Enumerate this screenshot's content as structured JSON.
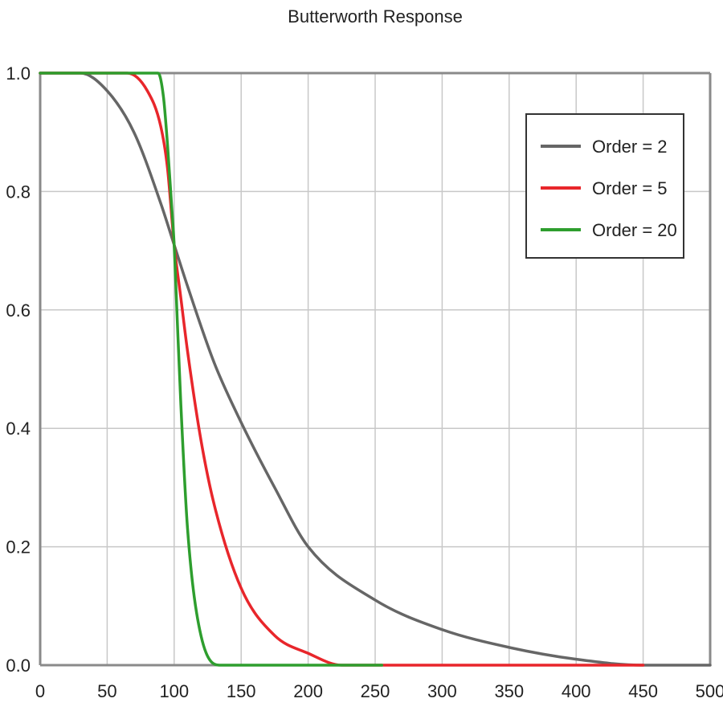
{
  "chart_data": {
    "type": "line",
    "title": "Butterworth Response",
    "xlabel": "",
    "ylabel": "",
    "xlim": [
      0,
      500
    ],
    "ylim": [
      0,
      1
    ],
    "x_ticks": [
      "0",
      "50",
      "100",
      "150",
      "200",
      "250",
      "300",
      "350",
      "400",
      "450",
      "500"
    ],
    "y_ticks": [
      "0.0",
      "0.2",
      "0.4",
      "0.6",
      "0.8",
      "1.0"
    ],
    "grid": true,
    "legend_position": "top-right",
    "cutoff": 100,
    "series": [
      {
        "name": "Order = 2",
        "color": "#666666",
        "x": [
          0,
          30,
          50,
          70,
          90,
          100,
          110,
          130,
          150,
          175,
          200,
          250,
          300,
          350,
          400,
          450,
          500
        ],
        "values": [
          1.0,
          1.0,
          0.97,
          0.9,
          0.78,
          0.71,
          0.64,
          0.51,
          0.41,
          0.3,
          0.2,
          0.11,
          0.06,
          0.03,
          0.01,
          0.0,
          0.0
        ]
      },
      {
        "name": "Order = 5",
        "color": "#e8262b",
        "x": [
          0,
          65,
          80,
          90,
          95,
          100,
          105,
          110,
          120,
          130,
          150,
          175,
          200,
          225,
          250,
          300,
          400,
          450
        ],
        "values": [
          1.0,
          1.0,
          0.97,
          0.91,
          0.84,
          0.71,
          0.62,
          0.53,
          0.38,
          0.27,
          0.13,
          0.05,
          0.02,
          0.0,
          0.0,
          0.0,
          0.0,
          0.0
        ]
      },
      {
        "name": "Order = 20",
        "color": "#2e9e2e",
        "x": [
          0,
          88,
          92,
          95,
          98,
          100,
          102,
          105,
          110,
          120,
          135,
          150,
          200,
          255
        ],
        "values": [
          1.0,
          1.0,
          0.96,
          0.88,
          0.78,
          0.71,
          0.6,
          0.44,
          0.23,
          0.05,
          0.0,
          0.0,
          0.0,
          0.0
        ]
      }
    ]
  }
}
